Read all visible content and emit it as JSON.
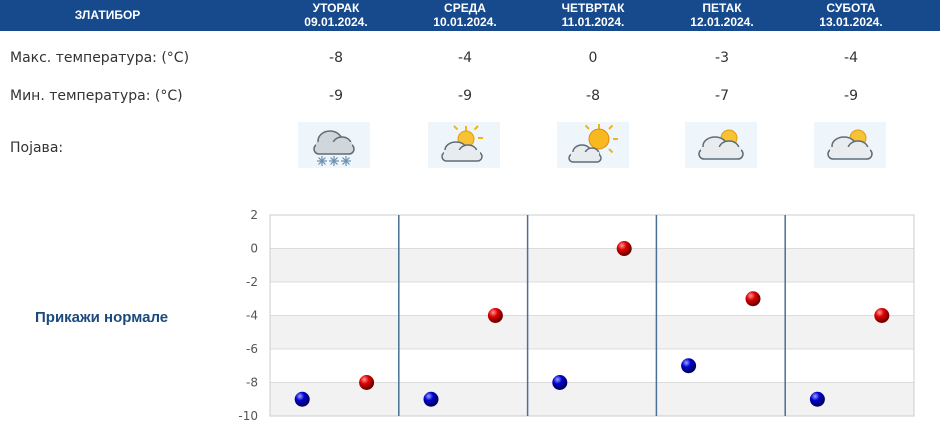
{
  "header": {
    "station": "ЗЛАТИБОР",
    "days": [
      {
        "name": "УТОРАК",
        "date": "09.01.2024."
      },
      {
        "name": "СРЕДА",
        "date": "10.01.2024."
      },
      {
        "name": "ЧЕТВРТАК",
        "date": "11.01.2024."
      },
      {
        "name": "ПЕТАК",
        "date": "12.01.2024."
      },
      {
        "name": "СУБОТА",
        "date": "13.01.2024."
      }
    ]
  },
  "rows": {
    "max_label": "Макс. температура: (°C)",
    "min_label": "Мин. температура: (°C)",
    "phenomenon_label": "Појава:"
  },
  "max_temps": [
    "-8",
    "-4",
    "0",
    "-3",
    "-4"
  ],
  "min_temps": [
    "-9",
    "-9",
    "-8",
    "-7",
    "-9"
  ],
  "icons": [
    "snow-cloud-icon",
    "partly-cloudy-icon",
    "sunny-cloud-icon",
    "cloudy-sun-icon",
    "cloudy-sun-icon"
  ],
  "normals_link": "Прикажи нормале",
  "colors": {
    "header_bg": "#164a8c",
    "max_marker": "#d40000",
    "min_marker": "#0000c8"
  },
  "chart_data": {
    "type": "scatter",
    "categories": [
      "09.01.2024.",
      "10.01.2024.",
      "11.01.2024.",
      "12.01.2024.",
      "13.01.2024."
    ],
    "series": [
      {
        "values": [
          -9,
          -9,
          -8,
          -7,
          -9
        ]
      },
      {
        "values": [
          -8,
          -4,
          0,
          -3,
          -4
        ]
      }
    ],
    "yticks": [
      "2",
      "0",
      "-2",
      "-4",
      "-6",
      "-8",
      "-10"
    ],
    "ylim": [
      -10,
      2
    ],
    "grid": true
  }
}
